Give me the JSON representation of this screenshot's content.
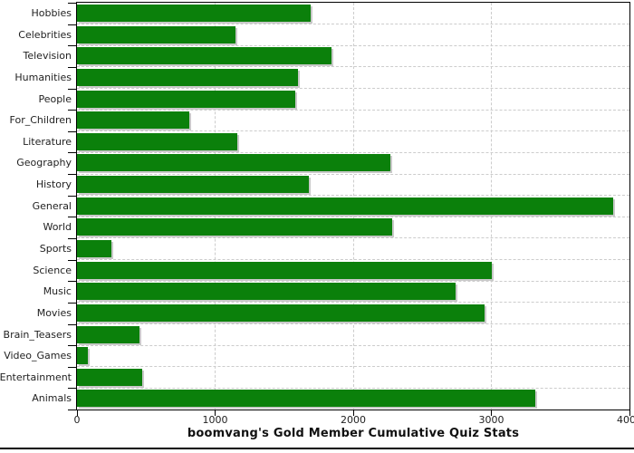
{
  "chart_data": {
    "type": "bar",
    "orientation": "horizontal",
    "title": "boomvang's Gold Member Cumulative Quiz Stats",
    "categories": [
      "Hobbies",
      "Celebrities",
      "Television",
      "Humanities",
      "People",
      "For_Children",
      "Literature",
      "Geography",
      "History",
      "General",
      "World",
      "Sports",
      "Science",
      "Music",
      "Movies",
      "Brain_Teasers",
      "Video_Games",
      "Entertainment",
      "Animals"
    ],
    "values": [
      1690,
      1150,
      1840,
      1600,
      1580,
      810,
      1160,
      2270,
      1680,
      3880,
      2280,
      250,
      3000,
      2740,
      2950,
      450,
      80,
      470,
      3320
    ],
    "xlabel": "",
    "ylabel": "",
    "xlim": [
      0,
      4000
    ],
    "x_ticks": [
      0,
      1000,
      2000,
      3000,
      4000
    ],
    "x_tick_labels": [
      "0",
      "1000",
      "2000",
      "3000",
      "4000"
    ],
    "grid": "dashed",
    "legend": "none",
    "colors": {
      "bar": "#0b800b",
      "bar_shadow": "#c9c9c9",
      "grid": "#cccccc",
      "axis": "#000000",
      "text": "#222222",
      "title_text": "#111111",
      "background": "#ffffff"
    }
  }
}
